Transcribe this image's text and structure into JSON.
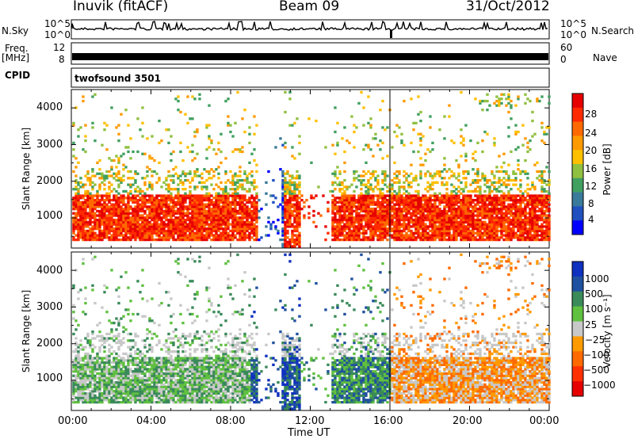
{
  "header": {
    "station": "Inuvik (fitACF)",
    "beam": "Beam 09",
    "date": "31/Oct/2012"
  },
  "strip": {
    "left_labels": [
      "N.Sky",
      "Freq.",
      "[MHz]",
      "CPID"
    ],
    "right_labels": [
      "N.Search",
      "Nave"
    ],
    "nsky_ticks": [
      "10^5",
      "10^0"
    ],
    "nsearch_ticks": [
      "10^5",
      "10^0"
    ],
    "freq_ticks": [
      "12",
      "8"
    ],
    "nave_ticks": [
      "60",
      "0"
    ],
    "cpid_text": "twofsound 3501"
  },
  "chart_data": [
    {
      "type": "heatmap",
      "title": "",
      "xlabel": "",
      "ylabel": "Slant Range [km]",
      "ylim": [
        180,
        4500
      ],
      "yticks": [
        "4000",
        "3000",
        "2000",
        "1000"
      ],
      "colorbar": {
        "label": "Power [dB]",
        "ticks": [
          "28",
          "24",
          "20",
          "16",
          "12",
          "8",
          "4"
        ],
        "colors": [
          "#e60000",
          "#ff2a00",
          "#ff6a00",
          "#ff9a00",
          "#ffc000",
          "#90c040",
          "#40a060",
          "#3a7a9a",
          "#2050c0",
          "#0000ff"
        ]
      }
    },
    {
      "type": "heatmap",
      "title": "",
      "xlabel": "Time UT",
      "ylabel": "Slant Range [km]",
      "ylim": [
        180,
        4500
      ],
      "yticks": [
        "4000",
        "3000",
        "2000",
        "1000"
      ],
      "xticks": [
        "00:00",
        "04:00",
        "08:00",
        "12:00",
        "16:00",
        "20:00",
        "00:00"
      ],
      "colorbar": {
        "label": "Velocity [m s⁻¹]",
        "ticks": [
          "1000",
          "500",
          "100",
          "25",
          "−25",
          "−100",
          "−500",
          "−1000"
        ],
        "colors": [
          "#1030c0",
          "#2050a0",
          "#3a8a5a",
          "#60c040",
          "#c8c8c8",
          "#ff9a00",
          "#ff6a00",
          "#ff3000",
          "#e60000"
        ]
      }
    }
  ]
}
